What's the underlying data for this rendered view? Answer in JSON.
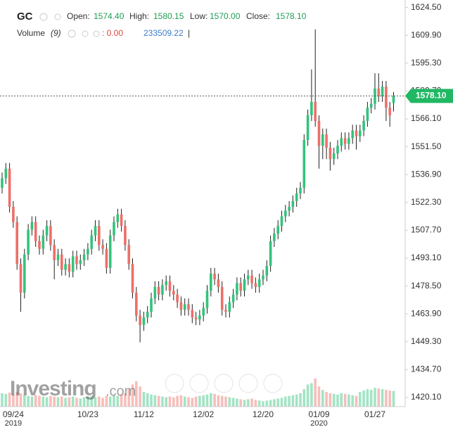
{
  "header": {
    "symbol": "GC",
    "open_label": "Open:",
    "open": "1574.40",
    "high_label": "High:",
    "high": "1580.15",
    "low_label": "Low:",
    "low": "1570.00",
    "close_label": "Close:",
    "close": "1578.10",
    "volume_label": "Volume",
    "volume_period": "(9)",
    "volume_change": ": 0.00",
    "volume_value": "233509.22",
    "separator": "|"
  },
  "watermark": {
    "main": "Investing",
    "suffix": ".com"
  },
  "chart_data": {
    "type": "candlestick",
    "categories": [
      null,
      null,
      null,
      "09/24",
      null,
      null,
      null,
      null,
      null,
      null,
      null,
      null,
      null,
      null,
      null,
      null,
      null,
      null,
      null,
      null,
      null,
      null,
      null,
      "10/23",
      null,
      null,
      null,
      null,
      null,
      null,
      null,
      null,
      null,
      null,
      null,
      null,
      null,
      null,
      "11/12",
      null,
      null,
      null,
      null,
      null,
      null,
      null,
      null,
      null,
      null,
      null,
      null,
      null,
      null,
      null,
      "12/02",
      null,
      null,
      null,
      null,
      null,
      null,
      null,
      null,
      null,
      null,
      null,
      null,
      null,
      null,
      null,
      "12/20",
      null,
      null,
      null,
      null,
      null,
      null,
      null,
      null,
      null,
      null,
      null,
      null,
      null,
      null,
      "01/09",
      null,
      null,
      null,
      null,
      null,
      null,
      null,
      null,
      null,
      null,
      null,
      null,
      null,
      null,
      "01/27",
      null,
      null,
      null,
      null,
      null
    ],
    "years": [
      null,
      null,
      null,
      "2019",
      null,
      null,
      null,
      null,
      null,
      null,
      null,
      null,
      null,
      null,
      null,
      null,
      null,
      null,
      null,
      null,
      null,
      null,
      null,
      null,
      null,
      null,
      null,
      null,
      null,
      null,
      null,
      null,
      null,
      null,
      null,
      null,
      null,
      null,
      null,
      null,
      null,
      null,
      null,
      null,
      null,
      null,
      null,
      null,
      null,
      null,
      null,
      null,
      null,
      null,
      null,
      null,
      null,
      null,
      null,
      null,
      null,
      null,
      null,
      null,
      null,
      null,
      null,
      null,
      null,
      null,
      null,
      null,
      null,
      null,
      null,
      null,
      null,
      null,
      null,
      null,
      null,
      null,
      null,
      null,
      null,
      "2020",
      null,
      null,
      null,
      null,
      null,
      null,
      null,
      null,
      null,
      null,
      null,
      null,
      null,
      null,
      null,
      null,
      null,
      null,
      null,
      null
    ],
    "open": [
      1530,
      1535,
      1540,
      1520,
      1512,
      1490,
      1475,
      1495,
      1508,
      1512,
      1502,
      1498,
      1505,
      1510,
      1500,
      1492,
      1495,
      1487,
      1490,
      1486,
      1494,
      1490,
      1492,
      1495,
      1498,
      1505,
      1510,
      1500,
      1498,
      1488,
      1505,
      1512,
      1516,
      1510,
      1500,
      1490,
      1475,
      1463,
      1458,
      1462,
      1465,
      1472,
      1478,
      1474,
      1479,
      1481,
      1476,
      1474,
      1470,
      1466,
      1469,
      1466,
      1462,
      1461,
      1463,
      1467,
      1476,
      1485,
      1482,
      1478,
      1466,
      1465,
      1470,
      1474,
      1480,
      1476,
      1482,
      1484,
      1480,
      1478,
      1482,
      1484,
      1489,
      1502,
      1506,
      1510,
      1515,
      1518,
      1520,
      1523,
      1527,
      1530,
      1555,
      1568,
      1575,
      1565,
      1552,
      1558,
      1551,
      1545,
      1548,
      1552,
      1556,
      1553,
      1556,
      1560,
      1557,
      1560,
      1565,
      1572,
      1574,
      1582,
      1578,
      1583,
      1572,
      1574.4
    ],
    "high": [
      1538,
      1543,
      1543,
      1523,
      1515,
      1493,
      1498,
      1511,
      1515,
      1515,
      1505,
      1508,
      1513,
      1513,
      1503,
      1498,
      1498,
      1493,
      1493,
      1497,
      1497,
      1495,
      1498,
      1501,
      1508,
      1513,
      1513,
      1503,
      1501,
      1508,
      1515,
      1519,
      1519,
      1513,
      1503,
      1493,
      1478,
      1466,
      1465,
      1468,
      1475,
      1481,
      1481,
      1482,
      1484,
      1484,
      1479,
      1477,
      1473,
      1472,
      1472,
      1469,
      1465,
      1466,
      1470,
      1479,
      1488,
      1488,
      1485,
      1481,
      1469,
      1473,
      1477,
      1483,
      1483,
      1485,
      1487,
      1487,
      1483,
      1485,
      1487,
      1492,
      1505,
      1509,
      1513,
      1518,
      1521,
      1523,
      1526,
      1530,
      1533,
      1558,
      1571,
      1592,
      1613,
      1568,
      1561,
      1561,
      1554,
      1551,
      1555,
      1559,
      1559,
      1559,
      1563,
      1563,
      1563,
      1568,
      1575,
      1577,
      1590,
      1590,
      1586,
      1586,
      1575,
      1580.15
    ],
    "low": [
      1527,
      1532,
      1517,
      1509,
      1487,
      1465,
      1472,
      1492,
      1505,
      1499,
      1495,
      1495,
      1502,
      1497,
      1482,
      1489,
      1484,
      1484,
      1483,
      1483,
      1487,
      1487,
      1489,
      1492,
      1495,
      1502,
      1497,
      1495,
      1485,
      1485,
      1502,
      1509,
      1507,
      1497,
      1487,
      1472,
      1460,
      1449,
      1455,
      1459,
      1462,
      1469,
      1471,
      1471,
      1476,
      1473,
      1471,
      1467,
      1463,
      1463,
      1463,
      1459,
      1458,
      1458,
      1460,
      1464,
      1473,
      1479,
      1475,
      1463,
      1462,
      1462,
      1467,
      1471,
      1473,
      1473,
      1479,
      1477,
      1475,
      1475,
      1479,
      1481,
      1486,
      1499,
      1503,
      1507,
      1512,
      1515,
      1517,
      1520,
      1524,
      1527,
      1552,
      1565,
      1562,
      1540,
      1545,
      1545,
      1539,
      1542,
      1545,
      1549,
      1550,
      1550,
      1553,
      1550,
      1554,
      1557,
      1562,
      1569,
      1571,
      1575,
      1575,
      1565,
      1562,
      1570
    ],
    "close": [
      1535,
      1540,
      1520,
      1512,
      1490,
      1475,
      1495,
      1508,
      1512,
      1502,
      1498,
      1505,
      1510,
      1500,
      1492,
      1495,
      1487,
      1490,
      1486,
      1494,
      1490,
      1492,
      1495,
      1498,
      1505,
      1510,
      1500,
      1498,
      1488,
      1505,
      1512,
      1516,
      1510,
      1500,
      1490,
      1475,
      1463,
      1458,
      1462,
      1465,
      1472,
      1478,
      1474,
      1479,
      1481,
      1476,
      1474,
      1470,
      1466,
      1469,
      1466,
      1462,
      1461,
      1463,
      1467,
      1476,
      1485,
      1482,
      1478,
      1466,
      1465,
      1470,
      1474,
      1480,
      1476,
      1482,
      1484,
      1480,
      1478,
      1482,
      1484,
      1489,
      1502,
      1506,
      1510,
      1515,
      1518,
      1520,
      1523,
      1527,
      1530,
      1555,
      1568,
      1575,
      1565,
      1552,
      1558,
      1551,
      1545,
      1548,
      1552,
      1556,
      1553,
      1556,
      1560,
      1557,
      1560,
      1565,
      1572,
      1574,
      1582,
      1578,
      1583,
      1572,
      1568,
      1578.1
    ],
    "volume": [
      200000,
      190000,
      210000,
      180000,
      220000,
      200000,
      170000,
      160000,
      150000,
      170000,
      160000,
      150000,
      140000,
      160000,
      150000,
      140000,
      150000,
      130000,
      140000,
      150000,
      130000,
      120000,
      140000,
      150000,
      160000,
      140000,
      150000,
      130000,
      160000,
      150000,
      170000,
      160000,
      180000,
      200000,
      260000,
      330000,
      380000,
      300000,
      220000,
      200000,
      180000,
      170000,
      160000,
      150000,
      140000,
      150000,
      140000,
      160000,
      170000,
      150000,
      140000,
      130000,
      150000,
      160000,
      170000,
      180000,
      200000,
      190000,
      170000,
      160000,
      150000,
      140000,
      130000,
      120000,
      110000,
      100000,
      110000,
      120000,
      100000,
      90000,
      80000,
      90000,
      100000,
      110000,
      120000,
      130000,
      150000,
      160000,
      170000,
      180000,
      200000,
      260000,
      330000,
      350000,
      420000,
      300000,
      250000,
      220000,
      200000,
      190000,
      180000,
      200000,
      190000,
      180000,
      170000,
      160000,
      220000,
      240000,
      260000,
      250000,
      280000,
      270000,
      260000,
      250000,
      240000,
      233509.22
    ],
    "up_color": "#33c37c",
    "down_color": "#ee6f68",
    "ylim": [
      1415.3,
      1628.4
    ],
    "yticks": [
      {
        "value": 1624.5,
        "label": "1624.50"
      },
      {
        "value": 1609.9,
        "label": "1609.90"
      },
      {
        "value": 1595.3,
        "label": "1595.30"
      },
      {
        "value": 1580.7,
        "label": "1580.70"
      },
      {
        "value": 1566.1,
        "label": "1566.10"
      },
      {
        "value": 1551.5,
        "label": "1551.50"
      },
      {
        "value": 1536.9,
        "label": "1536.90"
      },
      {
        "value": 1522.3,
        "label": "1522.30"
      },
      {
        "value": 1507.7,
        "label": "1507.70"
      },
      {
        "value": 1493.1,
        "label": "1493.10"
      },
      {
        "value": 1478.5,
        "label": "1478.50"
      },
      {
        "value": 1463.9,
        "label": "1463.90"
      },
      {
        "value": 1449.3,
        "label": "1449.30"
      },
      {
        "value": 1434.7,
        "label": "1434.70"
      },
      {
        "value": 1420.1,
        "label": "1420.10"
      }
    ],
    "last_price": {
      "value": 1578.1,
      "label": "1578.10"
    }
  }
}
